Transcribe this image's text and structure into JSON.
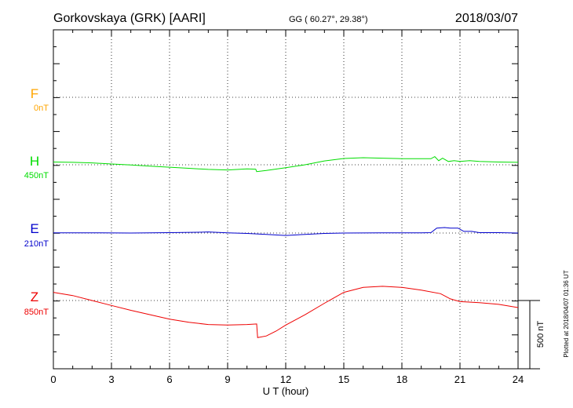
{
  "header": {
    "station": "Gorkovskaya (GRK)  [AARI]",
    "coords": "GG ( 60.27°,  29.38°)",
    "date": "2018/03/07"
  },
  "footer_note": "Plotted at 2018/04/07 01:36 UT",
  "colors": {
    "F": "#ffa500",
    "H": "#00dd00",
    "E": "#0000cc",
    "Z": "#ee0000",
    "axis": "#000000"
  },
  "chart_data": {
    "type": "line",
    "xlabel": "U T (hour)",
    "xlim": [
      0,
      24
    ],
    "xticks": [
      "0",
      "3",
      "6",
      "9",
      "12",
      "15",
      "18",
      "21",
      "24"
    ],
    "scale_bar_label": "500 nT",
    "scale_bar_nT": 500,
    "channels": [
      {
        "name": "F",
        "baseline_label": "0nT"
      },
      {
        "name": "H",
        "baseline_label": "450nT"
      },
      {
        "name": "E",
        "baseline_label": "210nT"
      },
      {
        "name": "Z",
        "baseline_label": "850nT"
      }
    ],
    "series": [
      {
        "name": "H",
        "x": [
          0,
          1,
          2,
          3,
          4,
          5,
          6,
          7,
          8,
          9,
          10,
          10.45,
          10.5,
          11,
          12,
          13,
          14,
          15,
          16,
          17,
          18,
          19,
          19.5,
          19.7,
          19.9,
          20.1,
          20.4,
          20.7,
          21,
          21.5,
          22,
          23,
          24
        ],
        "y": [
          20,
          18,
          14,
          6,
          -2,
          -10,
          -18,
          -26,
          -34,
          -38,
          -30,
          -32,
          -50,
          -42,
          -22,
          0,
          28,
          46,
          52,
          48,
          45,
          44,
          44,
          60,
          30,
          48,
          24,
          30,
          25,
          30,
          24,
          20,
          18
        ]
      },
      {
        "name": "E",
        "x": [
          0,
          2,
          4,
          6,
          7.5,
          8,
          9,
          10,
          11,
          12,
          13,
          14,
          15,
          17,
          18,
          19,
          19.5,
          19.8,
          20.2,
          20.5,
          20.9,
          21.2,
          21.6,
          22,
          23,
          24
        ],
        "y": [
          2,
          2,
          0,
          3,
          6,
          8,
          2,
          -3,
          -10,
          -18,
          -10,
          -3,
          0,
          2,
          2,
          2,
          3,
          36,
          40,
          36,
          36,
          12,
          12,
          3,
          3,
          0
        ]
      },
      {
        "name": "Z",
        "x": [
          0,
          1,
          2,
          3,
          4,
          5,
          6,
          7,
          8,
          9,
          10,
          10.5,
          10.55,
          11,
          11.5,
          12,
          13,
          14,
          15,
          16,
          17,
          18,
          19,
          20,
          20.5,
          21,
          22,
          23,
          24
        ],
        "y": [
          60,
          36,
          0,
          -36,
          -72,
          -104,
          -136,
          -160,
          -176,
          -180,
          -176,
          -172,
          -272,
          -260,
          -224,
          -180,
          -104,
          -20,
          60,
          96,
          104,
          96,
          76,
          50,
          12,
          -8,
          -16,
          -28,
          -52
        ]
      }
    ]
  }
}
